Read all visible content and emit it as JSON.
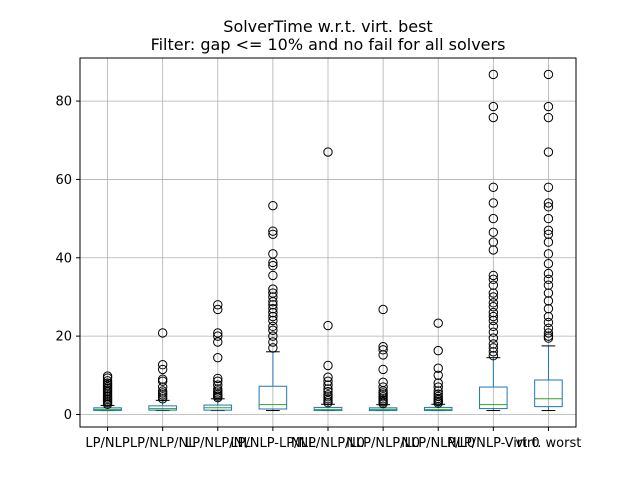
{
  "chart_data": {
    "type": "box",
    "title": "SolverTime w.r.t. virt. best",
    "subtitle": "Filter: gap <= 10% and no fail for all solvers",
    "xlabel": "",
    "ylabel": "",
    "ylim": [
      -3.2,
      91
    ],
    "yticks": [
      0,
      20,
      40,
      60,
      80
    ],
    "grid": true,
    "categories": [
      "LP/NLP",
      "LP/NLP/NL",
      "LP/NLP/NL",
      "LP/NLP-LP/NL",
      "NLP/NLP/L0",
      "NLP/NLP/L0",
      "NLP/NLP/L0",
      "NLP/NLP-Virt 0",
      "virt. worst"
    ],
    "series": [
      {
        "stats": [
          {
            "whislo": 1.0,
            "q1": 1.0,
            "med": 1.3,
            "q3": 1.7,
            "whishi": 2.3,
            "fliers": [
              2.6,
              3.0,
              3.4,
              3.8,
              4.2,
              4.6,
              5.0,
              5.4,
              5.8,
              6.2,
              6.6,
              7.0,
              7.5,
              8.0,
              8.6,
              9.3,
              9.8
            ]
          },
          {
            "whislo": 1.0,
            "q1": 1.1,
            "med": 1.5,
            "q3": 2.2,
            "whishi": 3.6,
            "fliers": [
              4.0,
              4.5,
              5.0,
              5.5,
              6.0,
              7.0,
              8.5,
              9.0,
              11.5,
              12.7,
              20.8
            ]
          },
          {
            "whislo": 1.0,
            "q1": 1.1,
            "med": 1.7,
            "q3": 2.4,
            "whishi": 4.0,
            "fliers": [
              4.3,
              4.7,
              5.1,
              5.5,
              6.0,
              6.5,
              7.5,
              8.5,
              9.2,
              14.5,
              18.5,
              20.0,
              20.8,
              26.8,
              28.0
            ]
          },
          {
            "whislo": 1.0,
            "q1": 1.4,
            "med": 2.5,
            "q3": 7.2,
            "whishi": 16.0,
            "fliers": [
              17.0,
              18.5,
              20.0,
              21.5,
              22.5,
              24.0,
              25.0,
              26.0,
              27.0,
              28.0,
              28.8,
              30.0,
              31.0,
              32.0,
              35.5,
              38.0,
              38.8,
              41.0,
              46.0,
              46.8,
              53.3
            ]
          },
          {
            "whislo": 1.0,
            "q1": 1.0,
            "med": 1.3,
            "q3": 1.8,
            "whishi": 2.6,
            "fliers": [
              3.0,
              3.5,
              4.0,
              4.5,
              5.0,
              5.8,
              6.5,
              7.5,
              8.5,
              9.5,
              12.5,
              22.7,
              67.0
            ]
          },
          {
            "whislo": 1.0,
            "q1": 1.0,
            "med": 1.3,
            "q3": 1.7,
            "whishi": 2.5,
            "fliers": [
              2.8,
              3.2,
              3.6,
              4.0,
              4.5,
              5.0,
              5.5,
              6.0,
              7.0,
              8.2,
              11.5,
              15.2,
              16.5,
              17.3,
              26.8
            ]
          },
          {
            "whislo": 1.0,
            "q1": 1.0,
            "med": 1.3,
            "q3": 1.8,
            "whishi": 2.6,
            "fliers": [
              2.9,
              3.3,
              3.7,
              4.1,
              4.6,
              5.2,
              6.0,
              7.0,
              8.0,
              10.0,
              11.8,
              16.3,
              23.3
            ]
          },
          {
            "whislo": 1.0,
            "q1": 1.5,
            "med": 2.5,
            "q3": 7.0,
            "whishi": 14.5,
            "fliers": [
              15.0,
              16.0,
              17.0,
              18.0,
              19.5,
              21.0,
              22.5,
              24.0,
              25.0,
              26.0,
              27.5,
              28.5,
              30.0,
              31.0,
              33.0,
              34.5,
              35.5,
              42.0,
              44.0,
              46.5,
              50.0,
              54.0,
              58.0,
              75.8,
              78.6,
              86.8
            ]
          },
          {
            "whislo": 1.0,
            "q1": 2.0,
            "med": 4.0,
            "q3": 8.8,
            "whishi": 17.5,
            "fliers": [
              19.5,
              20.0,
              20.8,
              22.0,
              23.5,
              25.0,
              27.0,
              29.0,
              31.0,
              33.0,
              34.5,
              36.0,
              38.5,
              41.0,
              44.0,
              46.0,
              47.0,
              50.0,
              53.0,
              54.0,
              58.0,
              67.0,
              75.8,
              78.6,
              86.8
            ]
          }
        ]
      }
    ]
  }
}
